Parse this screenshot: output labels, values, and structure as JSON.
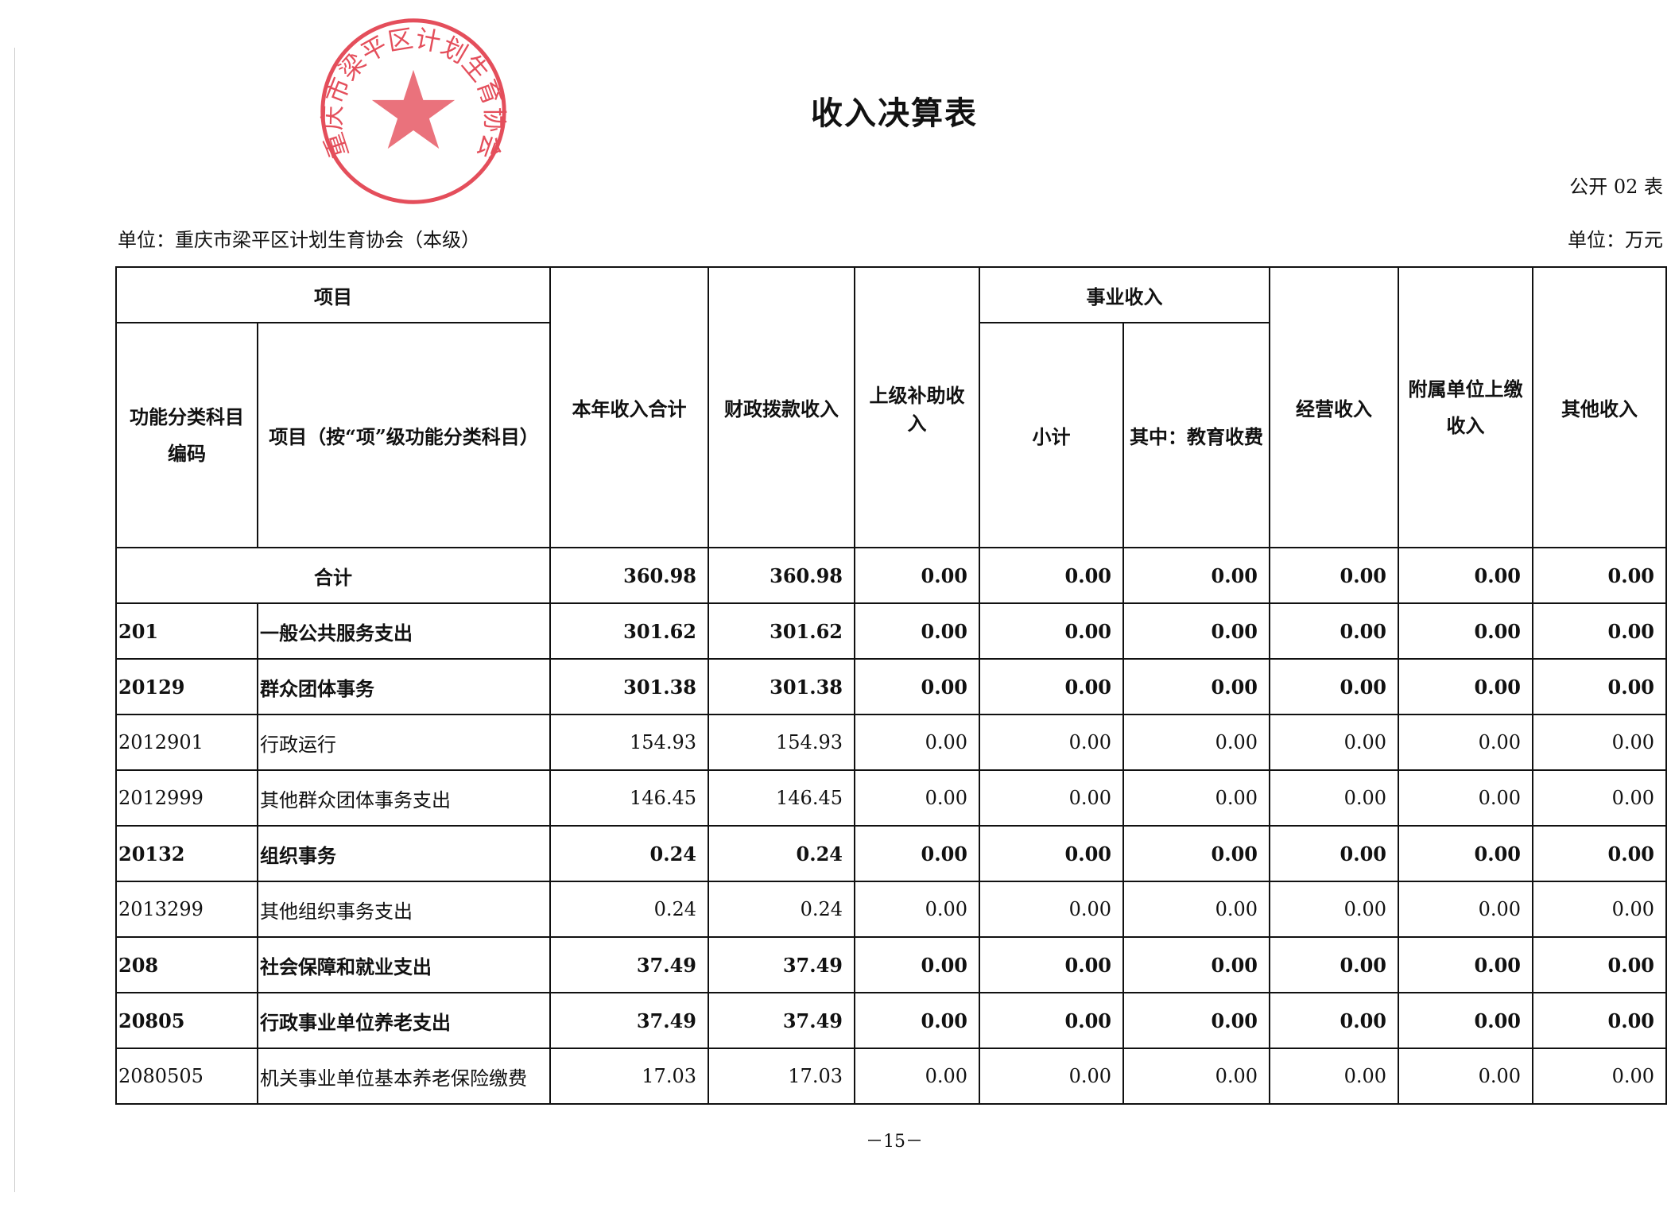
{
  "title": "收入决算表",
  "form_no": "公开 02 表",
  "unit_left": "单位：重庆市梁平区计划生育协会（本级）",
  "unit_right": "单位：万元",
  "stamp": {
    "text": "重庆市梁平区计划生育协会",
    "color": "#e0303f"
  },
  "header": {
    "project": "项目",
    "code": "功能分类科目编码",
    "item": "项目（按“项”级功能分类科目）",
    "total": "本年收入合计",
    "fiscal": "财政拨款收入",
    "superior": "上级补助收入",
    "business": "事业收入",
    "subtotal": "小计",
    "edu_fee": "其中：教育收费",
    "operating": "经营收入",
    "affiliated": "附属单位上缴收入",
    "other": "其他收入"
  },
  "total_row": {
    "label": "合计",
    "values": [
      "360.98",
      "360.98",
      "0.00",
      "0.00",
      "0.00",
      "0.00",
      "0.00",
      "0.00"
    ]
  },
  "rows": [
    {
      "code": "201",
      "name": "一般公共服务支出",
      "bold": true,
      "values": [
        "301.62",
        "301.62",
        "0.00",
        "0.00",
        "0.00",
        "0.00",
        "0.00",
        "0.00"
      ]
    },
    {
      "code": "20129",
      "name": "群众团体事务",
      "bold": true,
      "values": [
        "301.38",
        "301.38",
        "0.00",
        "0.00",
        "0.00",
        "0.00",
        "0.00",
        "0.00"
      ]
    },
    {
      "code": "2012901",
      "name": "行政运行",
      "bold": false,
      "values": [
        "154.93",
        "154.93",
        "0.00",
        "0.00",
        "0.00",
        "0.00",
        "0.00",
        "0.00"
      ]
    },
    {
      "code": "2012999",
      "name": "其他群众团体事务支出",
      "bold": false,
      "values": [
        "146.45",
        "146.45",
        "0.00",
        "0.00",
        "0.00",
        "0.00",
        "0.00",
        "0.00"
      ]
    },
    {
      "code": "20132",
      "name": "组织事务",
      "bold": true,
      "values": [
        "0.24",
        "0.24",
        "0.00",
        "0.00",
        "0.00",
        "0.00",
        "0.00",
        "0.00"
      ]
    },
    {
      "code": "2013299",
      "name": "其他组织事务支出",
      "bold": false,
      "values": [
        "0.24",
        "0.24",
        "0.00",
        "0.00",
        "0.00",
        "0.00",
        "0.00",
        "0.00"
      ]
    },
    {
      "code": "208",
      "name": "社会保障和就业支出",
      "bold": true,
      "values": [
        "37.49",
        "37.49",
        "0.00",
        "0.00",
        "0.00",
        "0.00",
        "0.00",
        "0.00"
      ]
    },
    {
      "code": "20805",
      "name": "行政事业单位养老支出",
      "bold": true,
      "values": [
        "37.49",
        "37.49",
        "0.00",
        "0.00",
        "0.00",
        "0.00",
        "0.00",
        "0.00"
      ]
    },
    {
      "code": "2080505",
      "name": "机关事业单位基本养老保险缴费",
      "bold": false,
      "values": [
        "17.03",
        "17.03",
        "0.00",
        "0.00",
        "0.00",
        "0.00",
        "0.00",
        "0.00"
      ]
    }
  ],
  "page_number": "－15－"
}
